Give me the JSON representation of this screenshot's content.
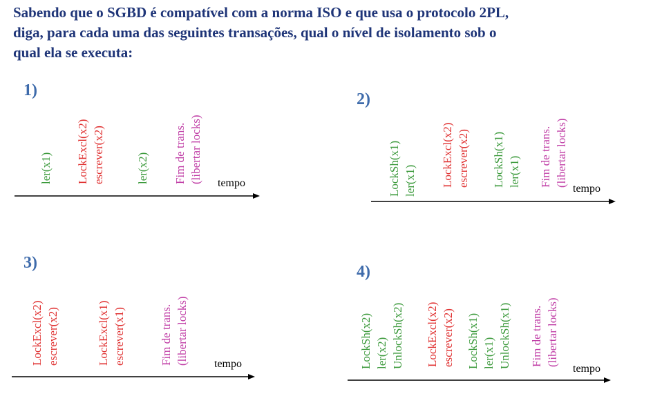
{
  "question_lines": [
    "Sabendo que o SGBD é compatível com a norma ISO e que usa o protocolo 2PL,",
    "diga, para cada uma das seguintes  transações,  qual  o nível de isolamento sob o",
    "qual ela se executa:"
  ],
  "colors": {
    "question": "#1f3578",
    "number": "#3e6bab",
    "read": "#3c9a3c",
    "exclusive": "#e03232",
    "end": "#c03ea6",
    "axis": "#000000"
  },
  "axis_label": "tempo",
  "diagrams": [
    {
      "number": "1)",
      "ops": [
        {
          "type": "read",
          "lines": [
            "ler(x1)"
          ]
        },
        {
          "type": "exclusive",
          "lines": [
            "LockExcl(x2)",
            "escrever(x2)"
          ]
        },
        {
          "type": "read",
          "lines": [
            "ler(x2)"
          ]
        },
        {
          "type": "end",
          "lines": [
            "Fim de trans.",
            "(libertar locks)"
          ]
        }
      ]
    },
    {
      "number": "2)",
      "ops": [
        {
          "type": "read",
          "lines": [
            "LockSh(x1)",
            "ler(x1)"
          ]
        },
        {
          "type": "exclusive",
          "lines": [
            "LockExcl(x2)",
            "escrever(x2)"
          ]
        },
        {
          "type": "read",
          "lines": [
            "LockSh(x1)",
            "ler(x1)"
          ]
        },
        {
          "type": "end",
          "lines": [
            "Fim de trans.",
            "(libertar locks)"
          ]
        }
      ]
    },
    {
      "number": "3)",
      "ops": [
        {
          "type": "exclusive",
          "lines": [
            "LockExcl(x2)",
            "escrever(x2)"
          ]
        },
        {
          "type": "exclusive",
          "lines": [
            "LockExcl(x1)",
            "escrever(x1)"
          ]
        },
        {
          "type": "end",
          "lines": [
            "Fim de trans.",
            "(libertar locks)"
          ]
        }
      ]
    },
    {
      "number": "4)",
      "ops": [
        {
          "type": "read",
          "lines": [
            "LockSh(x2)",
            "ler(x2)",
            "UnlockSh(x2)"
          ]
        },
        {
          "type": "exclusive",
          "lines": [
            "LockExcl(x2)",
            "escrever(x2)"
          ]
        },
        {
          "type": "read",
          "lines": [
            "LockSh(x1)",
            "ler(x1)",
            "UnlockSh(x1)"
          ]
        },
        {
          "type": "end",
          "lines": [
            "Fim de trans.",
            "(libertar locks)"
          ]
        }
      ]
    }
  ]
}
